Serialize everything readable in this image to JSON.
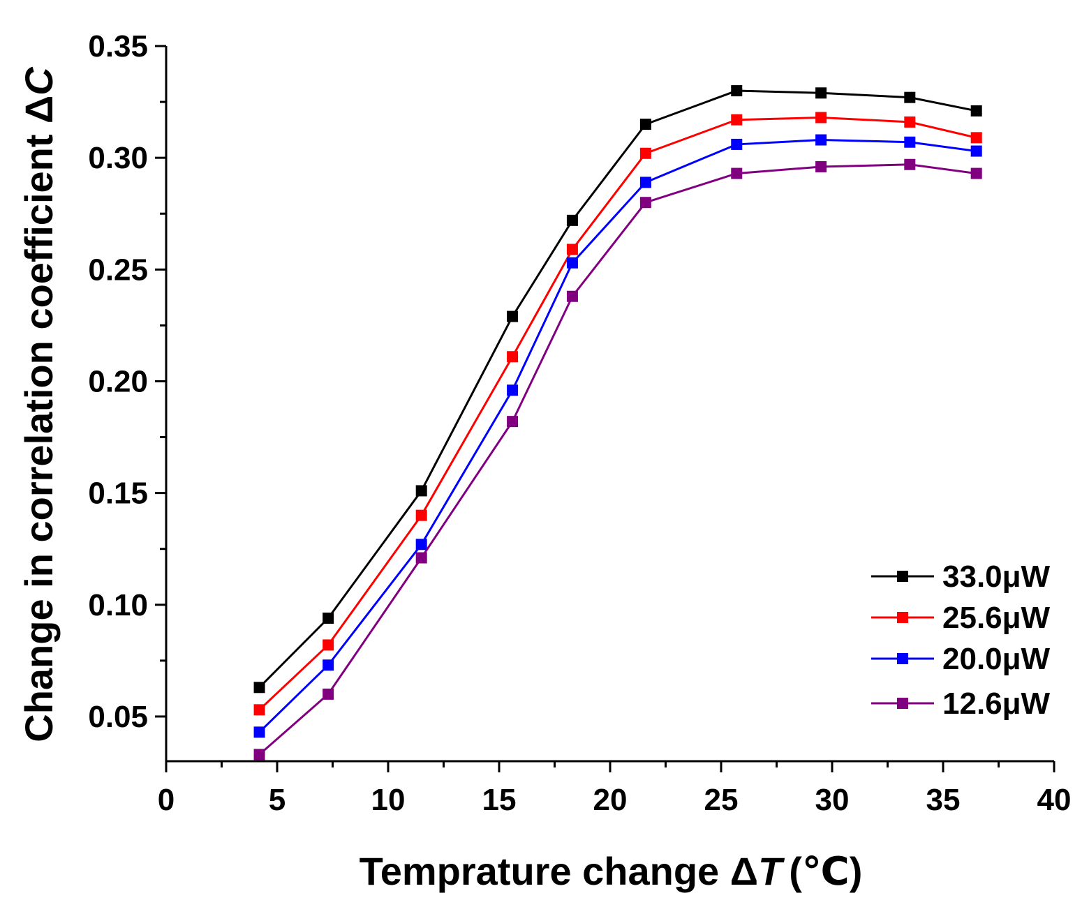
{
  "chart_data": {
    "type": "line",
    "title": "",
    "xlabel": "Temprature change ΔT (℃)",
    "xlabel_parts": {
      "main": "Temprature change Δ",
      "var": "T",
      "unit": "(℃)"
    },
    "ylabel": "Change in correlation coefficient ΔC",
    "ylabel_parts": {
      "main": "Change in correlation coefficient Δ",
      "var": "C"
    },
    "xlim": [
      0,
      40
    ],
    "ylim": [
      0.03,
      0.35
    ],
    "xticks": [
      0,
      5,
      10,
      15,
      20,
      25,
      30,
      35,
      40
    ],
    "xtick_labels": [
      "0",
      "5",
      "10",
      "15",
      "20",
      "25",
      "30",
      "35",
      "40"
    ],
    "yticks": [
      0.05,
      0.1,
      0.15,
      0.2,
      0.25,
      0.3,
      0.35
    ],
    "ytick_labels": [
      "0.05",
      "0.10",
      "0.15",
      "0.20",
      "0.25",
      "0.30",
      "0.35"
    ],
    "grid": false,
    "legend_position": "bottom-right",
    "x": [
      4.2,
      7.3,
      11.5,
      15.6,
      18.3,
      21.6,
      25.7,
      29.5,
      33.5,
      36.5
    ],
    "series": [
      {
        "name": "33.0μW",
        "color": "#000000",
        "values": [
          0.063,
          0.094,
          0.151,
          0.229,
          0.272,
          0.315,
          0.33,
          0.329,
          0.327,
          0.321
        ]
      },
      {
        "name": "25.6μW",
        "color": "#ff0000",
        "values": [
          0.053,
          0.082,
          0.14,
          0.211,
          0.259,
          0.302,
          0.317,
          0.318,
          0.316,
          0.309
        ]
      },
      {
        "name": "20.0μW",
        "color": "#0000ff",
        "values": [
          0.043,
          0.073,
          0.127,
          0.196,
          0.253,
          0.289,
          0.306,
          0.308,
          0.307,
          0.303
        ]
      },
      {
        "name": "12.6μW",
        "color": "#800080",
        "values": [
          0.033,
          0.06,
          0.121,
          0.182,
          0.238,
          0.28,
          0.293,
          0.296,
          0.297,
          0.293
        ]
      }
    ]
  }
}
